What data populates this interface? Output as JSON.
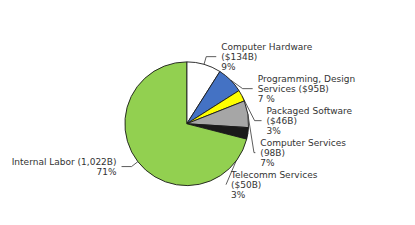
{
  "chart_data": {
    "type": "pie",
    "categories": [
      "Computer Hardware\n($134B)\n9%",
      "Programming, Design\nServices ($95B)\n7 %",
      "Packaged Software\n($46B)\n3%",
      "Computer Services\n(98B)\n7%",
      "Telecomm Services\n($50B)\n3%",
      "Internal Labor (1,022B)\n71%"
    ],
    "values": [
      9,
      7,
      3,
      7,
      3,
      71
    ],
    "colors": [
      "#ffffff",
      "#4472c4",
      "#ffff00",
      "#a6a6a6",
      "#1a1a1a",
      "#92d050"
    ]
  }
}
